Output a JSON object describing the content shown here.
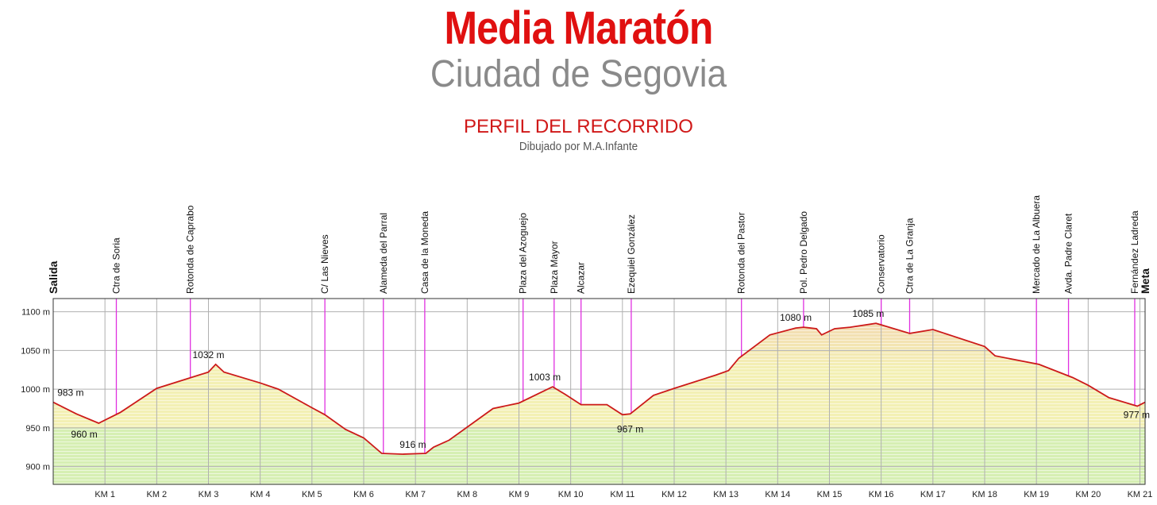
{
  "header": {
    "title": "Media Maratón",
    "subtitle": "Ciudad de Segovia",
    "section_title": "PERFIL DEL RECORRIDO",
    "credit": "Dibujado por M.A.Infante"
  },
  "colors": {
    "title": "#e01010",
    "subtitle": "#8a8a8a",
    "profile_line": "#cc1a1a",
    "landmark_line": "#e030e0",
    "fill_low": "#d6efb3",
    "fill_mid": "#f3f0b4",
    "fill_high": "#f3cfb0",
    "grid": "#b0b0b0"
  },
  "chart_data": {
    "type": "area",
    "xlabel": "",
    "ylabel": "",
    "xlim": [
      0,
      21.1
    ],
    "ylim": [
      877,
      1117
    ],
    "y_ticks": [
      {
        "value": 900,
        "label": "900 m"
      },
      {
        "value": 950,
        "label": "950 m"
      },
      {
        "value": 1000,
        "label": "1000 m"
      },
      {
        "value": 1050,
        "label": "1050 m"
      },
      {
        "value": 1100,
        "label": "1100 m"
      }
    ],
    "x_ticks": [
      {
        "value": 1,
        "label": "KM 1"
      },
      {
        "value": 2,
        "label": "KM 2"
      },
      {
        "value": 3,
        "label": "KM 3"
      },
      {
        "value": 4,
        "label": "KM 4"
      },
      {
        "value": 5,
        "label": "KM 5"
      },
      {
        "value": 6,
        "label": "KM 6"
      },
      {
        "value": 7,
        "label": "KM 7"
      },
      {
        "value": 8,
        "label": "KM 8"
      },
      {
        "value": 9,
        "label": "KM 9"
      },
      {
        "value": 10,
        "label": "KM 10"
      },
      {
        "value": 11,
        "label": "KM 11"
      },
      {
        "value": 12,
        "label": "KM 12"
      },
      {
        "value": 13,
        "label": "KM 13"
      },
      {
        "value": 14,
        "label": "KM 14"
      },
      {
        "value": 15,
        "label": "KM 15"
      },
      {
        "value": 16,
        "label": "KM 16"
      },
      {
        "value": 17,
        "label": "KM 17"
      },
      {
        "value": 18,
        "label": "KM 18"
      },
      {
        "value": 19,
        "label": "KM 19"
      },
      {
        "value": 20,
        "label": "KM 20"
      },
      {
        "value": 21,
        "label": "KM 21"
      }
    ],
    "profile": [
      [
        0,
        983
      ],
      [
        0.45,
        968
      ],
      [
        0.88,
        956
      ],
      [
        1.3,
        970
      ],
      [
        2.0,
        1001
      ],
      [
        3.0,
        1022
      ],
      [
        3.14,
        1032
      ],
      [
        3.3,
        1022
      ],
      [
        4.0,
        1008
      ],
      [
        4.35,
        1000
      ],
      [
        5.0,
        976
      ],
      [
        5.25,
        967
      ],
      [
        5.65,
        948
      ],
      [
        6.0,
        937
      ],
      [
        6.35,
        917
      ],
      [
        6.75,
        916
      ],
      [
        7.2,
        917
      ],
      [
        7.35,
        925
      ],
      [
        7.65,
        934
      ],
      [
        8.5,
        975
      ],
      [
        9.0,
        982
      ],
      [
        9.4,
        995
      ],
      [
        9.65,
        1003
      ],
      [
        9.9,
        993
      ],
      [
        10.2,
        980
      ],
      [
        10.7,
        980
      ],
      [
        11.0,
        967
      ],
      [
        11.15,
        968
      ],
      [
        11.6,
        992
      ],
      [
        12.0,
        1001
      ],
      [
        12.8,
        1018
      ],
      [
        13.05,
        1024
      ],
      [
        13.25,
        1040
      ],
      [
        13.85,
        1070
      ],
      [
        14.35,
        1079
      ],
      [
        14.5,
        1080
      ],
      [
        14.75,
        1078
      ],
      [
        14.85,
        1070
      ],
      [
        15.1,
        1078
      ],
      [
        15.4,
        1080
      ],
      [
        15.9,
        1085
      ],
      [
        16.0,
        1083
      ],
      [
        16.55,
        1072
      ],
      [
        17.0,
        1077
      ],
      [
        18.0,
        1055
      ],
      [
        18.2,
        1043
      ],
      [
        19.05,
        1032
      ],
      [
        19.7,
        1015
      ],
      [
        20.0,
        1005
      ],
      [
        20.4,
        989
      ],
      [
        20.95,
        978
      ],
      [
        21.1,
        983
      ]
    ],
    "elevation_labels": [
      {
        "x": 0.08,
        "y": 983,
        "label": "983 m"
      },
      {
        "x": 0.6,
        "y": 960,
        "label": "960 m"
      },
      {
        "x": 3.0,
        "y": 1032,
        "label": "1032 m"
      },
      {
        "x": 6.95,
        "y": 916,
        "label": "916 m"
      },
      {
        "x": 9.5,
        "y": 1003,
        "label": "1003 m"
      },
      {
        "x": 11.15,
        "y": 967,
        "label": "967 m"
      },
      {
        "x": 14.35,
        "y": 1080,
        "label": "1080 m"
      },
      {
        "x": 15.75,
        "y": 1085,
        "label": "1085 m"
      },
      {
        "x": 20.7,
        "y": 977,
        "label": "977 m"
      }
    ],
    "landmarks": [
      {
        "x": 0,
        "label": "Salida",
        "bold": true
      },
      {
        "x": 1.22,
        "label": "Ctra de Soria",
        "bold": false
      },
      {
        "x": 2.65,
        "label": "Rotonda de Caprabo",
        "bold": false
      },
      {
        "x": 5.25,
        "label": "C/ Las Nieves",
        "bold": false
      },
      {
        "x": 6.38,
        "label": "Alameda del Parral",
        "bold": false
      },
      {
        "x": 7.18,
        "label": "Casa de la Moneda",
        "bold": false
      },
      {
        "x": 9.08,
        "label": "Plaza del Azoguejo",
        "bold": false
      },
      {
        "x": 9.68,
        "label": "Plaza Mayor",
        "bold": false
      },
      {
        "x": 10.2,
        "label": "Alcazar",
        "bold": false
      },
      {
        "x": 11.17,
        "label": "Ezequiel González",
        "bold": false
      },
      {
        "x": 13.3,
        "label": "Rotonda del Pastor",
        "bold": false
      },
      {
        "x": 14.5,
        "label": "Pol. Pedro Delgado",
        "bold": false
      },
      {
        "x": 16.0,
        "label": "Conservatorio",
        "bold": false
      },
      {
        "x": 16.55,
        "label": "Ctra de La Granja",
        "bold": false
      },
      {
        "x": 19.0,
        "label": "Mercado de La Albuera",
        "bold": false
      },
      {
        "x": 19.62,
        "label": "Avda. Padre Claret",
        "bold": false
      },
      {
        "x": 20.9,
        "label": "Fernández Ladreda",
        "bold": false
      },
      {
        "x": 21.1,
        "label": "Meta",
        "bold": true
      }
    ]
  }
}
